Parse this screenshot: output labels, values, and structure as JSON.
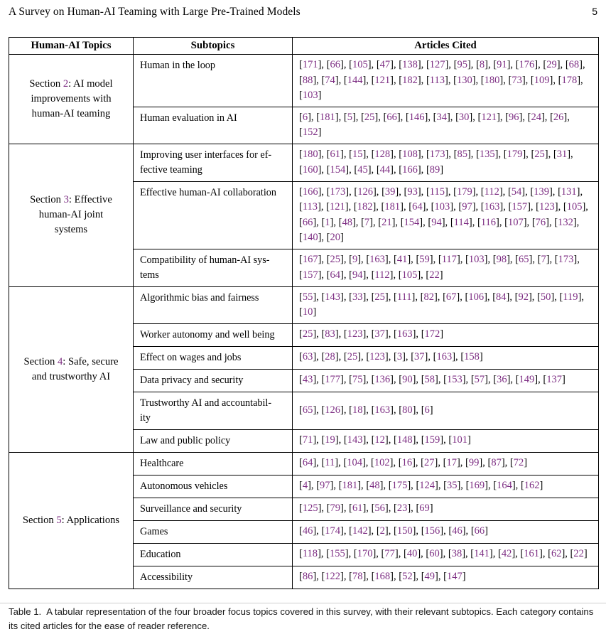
{
  "page": {
    "header_title": "A Survey on Human-AI Teaming with Large Pre-Trained Models",
    "page_number": "5"
  },
  "colors": {
    "citation": "#7D2E83",
    "text": "#000000",
    "border": "#000000"
  },
  "table": {
    "headers": [
      "Human-AI Topics",
      "Subtopics",
      "Articles Cited"
    ],
    "sections": [
      {
        "topic": {
          "line1_pre": "Section ",
          "number": "2",
          "line1_post": ": AI model",
          "more_lines": [
            "improvements with",
            "human-AI teaming"
          ]
        },
        "rows": [
          {
            "subtopic_lines": [
              "Human in the loop"
            ],
            "citations": [
              "171",
              "66",
              "105",
              "47",
              "138",
              "127",
              "95",
              "8",
              "91",
              "176",
              "29",
              "68",
              "88",
              "74",
              "144",
              "121",
              "182",
              "113",
              "130",
              "180",
              "73",
              "109",
              "178",
              "103"
            ]
          },
          {
            "subtopic_lines": [
              "Human evaluation in AI"
            ],
            "citations": [
              "6",
              "181",
              "5",
              "25",
              "66",
              "146",
              "34",
              "30",
              "121",
              "96",
              "24",
              "26",
              "152"
            ]
          }
        ]
      },
      {
        "topic": {
          "line1_pre": "Section ",
          "number": "3",
          "line1_post": ": Effective",
          "more_lines": [
            "human-AI joint",
            "systems"
          ]
        },
        "rows": [
          {
            "subtopic_lines": [
              "Improving user interfaces for ef-",
              "fective teaming"
            ],
            "citations": [
              "180",
              "61",
              "15",
              "128",
              "108",
              "173",
              "85",
              "135",
              "179",
              "25",
              "31",
              "160",
              "154",
              "45",
              "44",
              "166",
              "89"
            ]
          },
          {
            "subtopic_lines": [
              "Effective human-AI collaboration"
            ],
            "citations": [
              "166",
              "173",
              "126",
              "39",
              "93",
              "115",
              "179",
              "112",
              "54",
              "139",
              "131",
              "113",
              "121",
              "182",
              "181",
              "64",
              "103",
              "97",
              "163",
              "157",
              "123",
              "105",
              "66",
              "1",
              "48",
              "7",
              "21",
              "154",
              "94",
              "114",
              "116",
              "107",
              "76",
              "132",
              "140",
              "20"
            ]
          },
          {
            "subtopic_lines": [
              "Compatibility of human-AI sys-",
              "tems"
            ],
            "citations": [
              "167",
              "25",
              "9",
              "163",
              "41",
              "59",
              "117",
              "103",
              "98",
              "65",
              "7",
              "173",
              "157",
              "64",
              "94",
              "112",
              "105",
              "22"
            ]
          }
        ]
      },
      {
        "topic": {
          "line1_pre": "Section ",
          "number": "4",
          "line1_post": ": Safe, secure",
          "more_lines": [
            "and trustworthy AI"
          ]
        },
        "rows": [
          {
            "subtopic_lines": [
              "Algorithmic bias and fairness"
            ],
            "citations": [
              "55",
              "143",
              "33",
              "25",
              "111",
              "82",
              "67",
              "106",
              "84",
              "92",
              "50",
              "119",
              "10"
            ]
          },
          {
            "subtopic_lines": [
              "Worker autonomy and well being"
            ],
            "citations": [
              "25",
              "83",
              "123",
              "37",
              "163",
              "172"
            ]
          },
          {
            "subtopic_lines": [
              "Effect on wages and jobs"
            ],
            "citations": [
              "63",
              "28",
              "25",
              "123",
              "3",
              "37",
              "163",
              "158"
            ]
          },
          {
            "subtopic_lines": [
              "Data privacy and security"
            ],
            "citations": [
              "43",
              "177",
              "75",
              "136",
              "90",
              "58",
              "153",
              "57",
              "36",
              "149",
              "137"
            ]
          },
          {
            "subtopic_lines": [
              "Trustworthy AI and accountabil-",
              "ity"
            ],
            "citations": [
              "65",
              "126",
              "18",
              "163",
              "80",
              "6"
            ]
          },
          {
            "subtopic_lines": [
              "Law and public policy"
            ],
            "citations": [
              "71",
              "19",
              "143",
              "12",
              "148",
              "159",
              "101"
            ]
          }
        ]
      },
      {
        "topic": {
          "line1_pre": "Section ",
          "number": "5",
          "line1_post": ": Applications",
          "more_lines": []
        },
        "rows": [
          {
            "subtopic_lines": [
              "Healthcare"
            ],
            "citations": [
              "64",
              "11",
              "104",
              "102",
              "16",
              "27",
              "17",
              "99",
              "87",
              "72"
            ]
          },
          {
            "subtopic_lines": [
              "Autonomous vehicles"
            ],
            "citations": [
              "4",
              "97",
              "181",
              "48",
              "175",
              "124",
              "35",
              "169",
              "164",
              "162"
            ]
          },
          {
            "subtopic_lines": [
              "Surveillance and security"
            ],
            "citations": [
              "125",
              "79",
              "61",
              "56",
              "23",
              "69"
            ]
          },
          {
            "subtopic_lines": [
              "Games"
            ],
            "citations": [
              "46",
              "174",
              "142",
              "2",
              "150",
              "156",
              "46",
              "66"
            ]
          },
          {
            "subtopic_lines": [
              "Education"
            ],
            "citations": [
              "118",
              "155",
              "170",
              "77",
              "40",
              "60",
              "38",
              "141",
              "42",
              "161",
              "62",
              "22"
            ]
          },
          {
            "subtopic_lines": [
              "Accessibility"
            ],
            "citations": [
              "86",
              "122",
              "78",
              "168",
              "52",
              "49",
              "147"
            ]
          }
        ]
      }
    ]
  },
  "caption": {
    "label": "Table 1.",
    "text": "A tabular representation of the four broader focus topics covered in this survey, with their relevant subtopics. Each category contains its cited articles for the ease of reader reference."
  }
}
